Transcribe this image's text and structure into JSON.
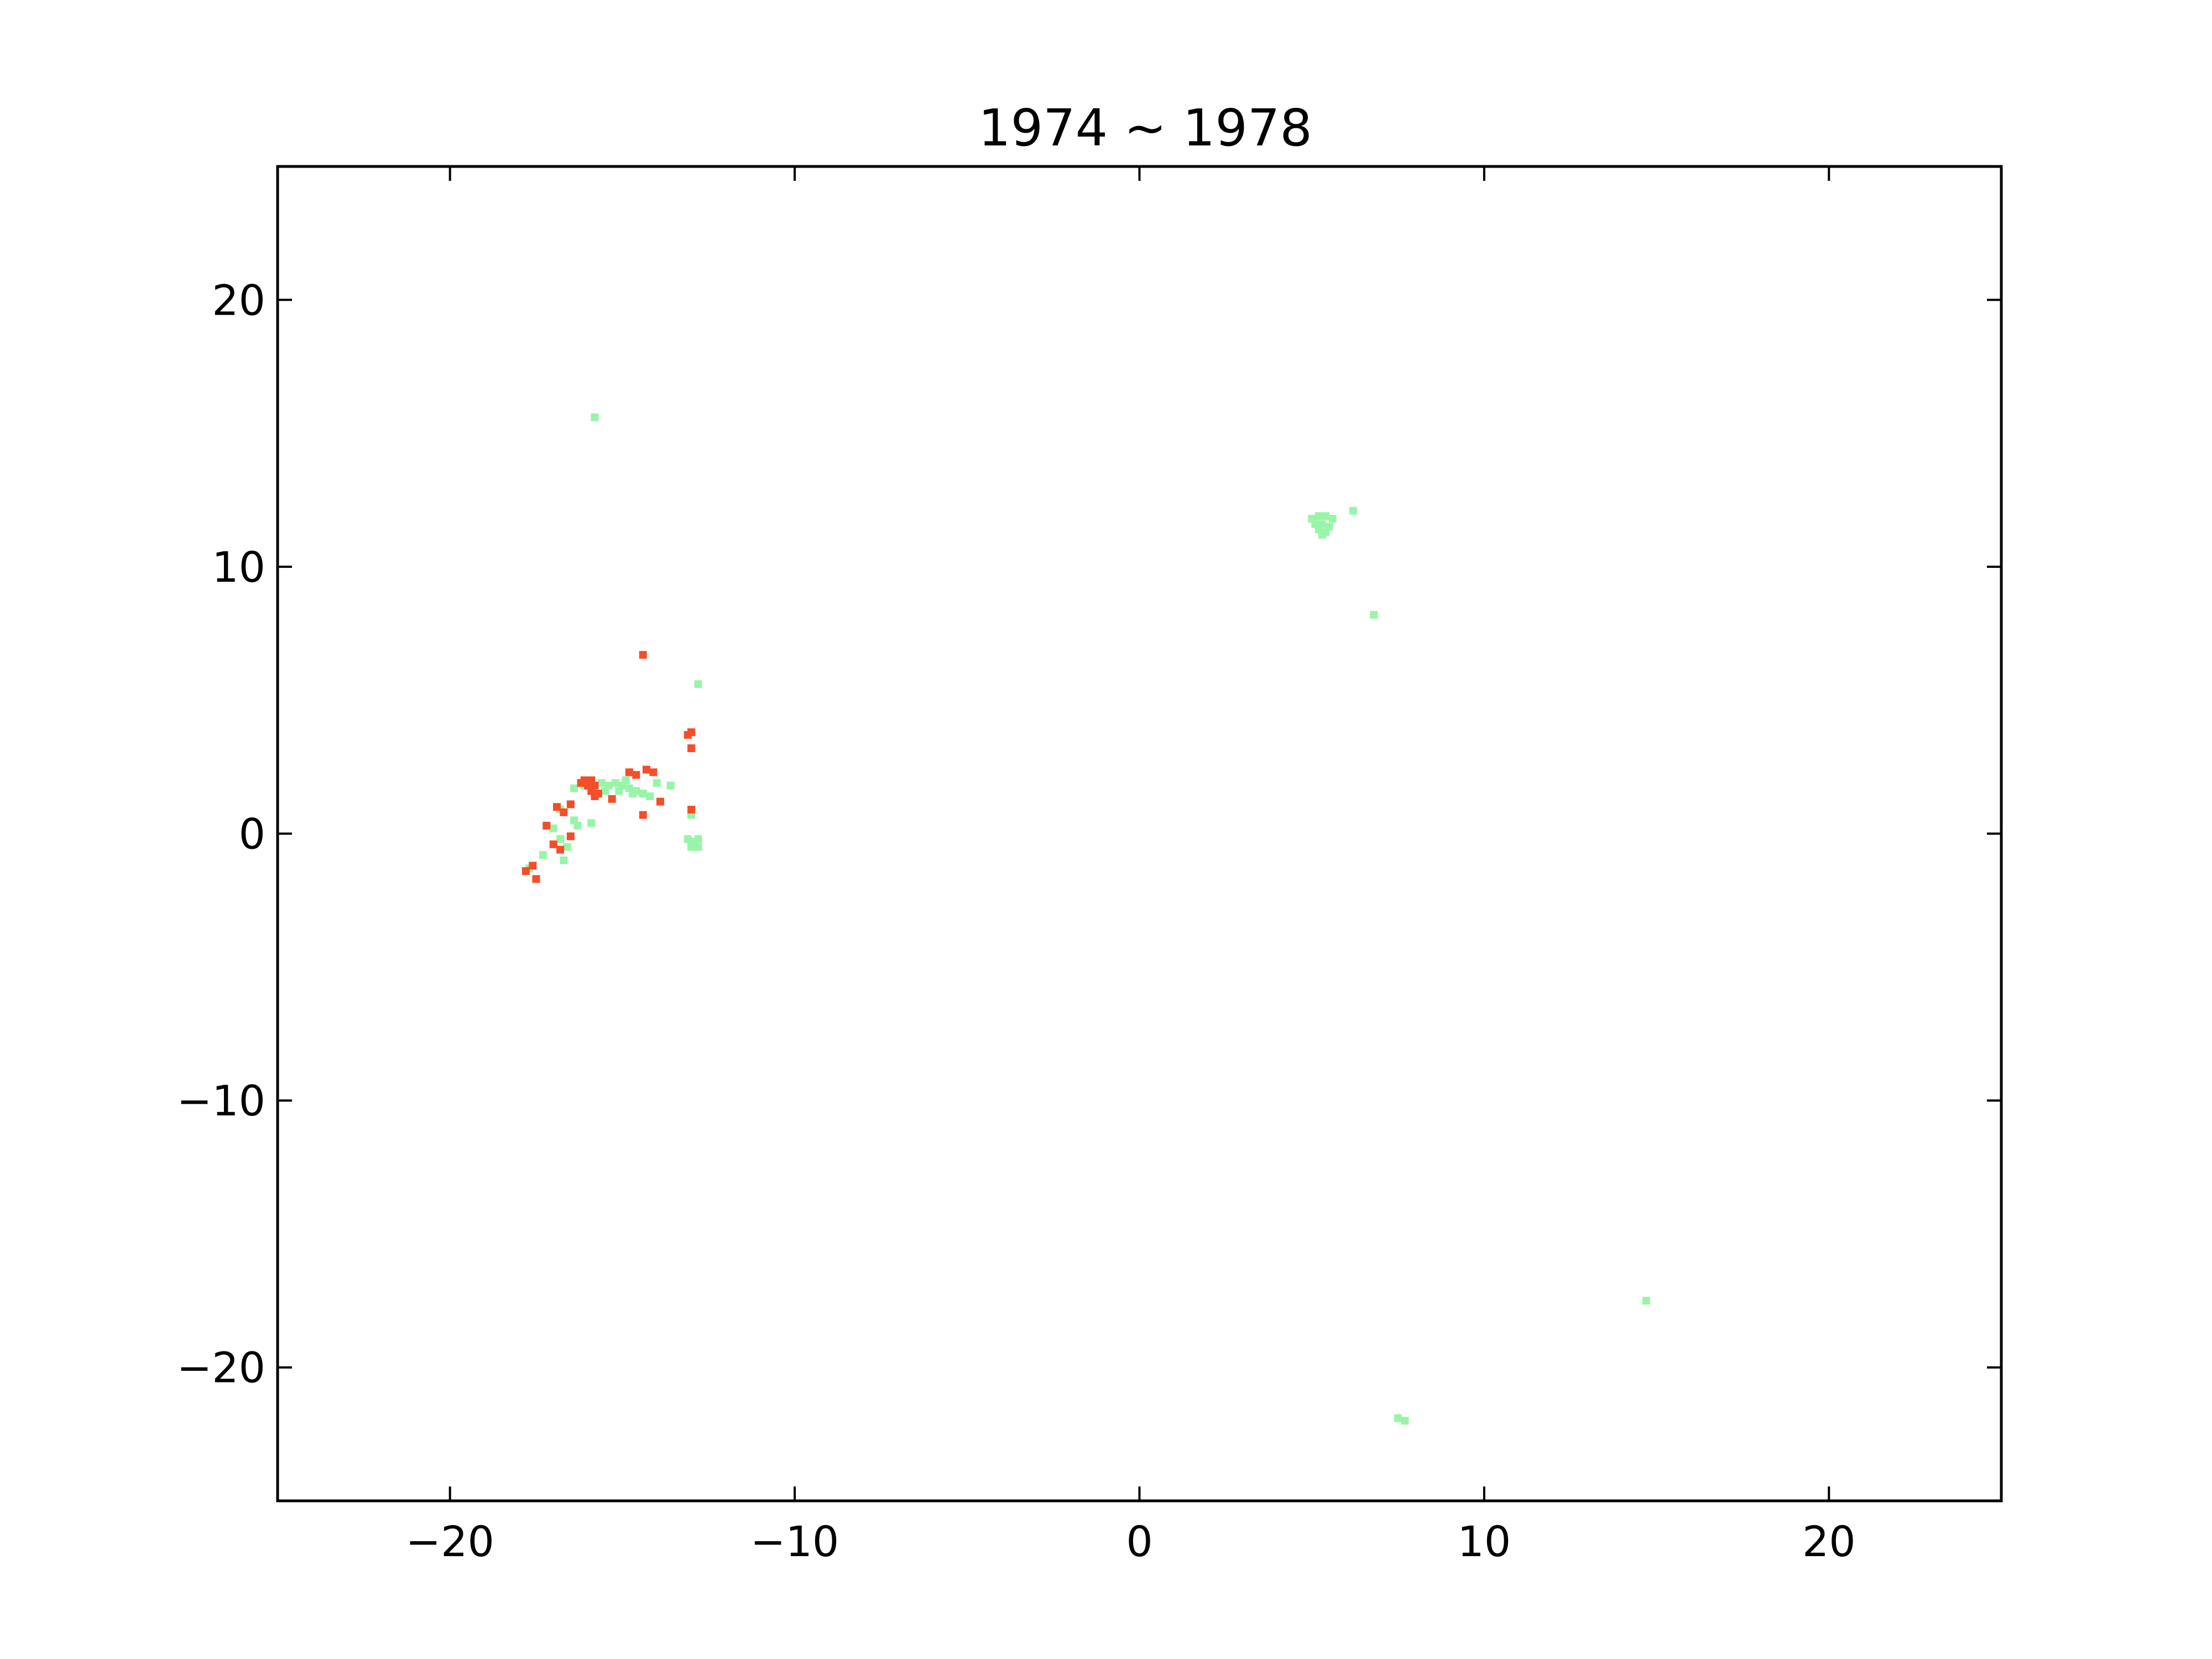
{
  "chart_data": {
    "type": "scatter",
    "title": "1974 ~ 1978",
    "xlabel": "",
    "ylabel": "",
    "xlim": [
      -25,
      25
    ],
    "ylim": [
      -25,
      25
    ],
    "xticks": [
      -20,
      -10,
      0,
      10,
      20
    ],
    "yticks": [
      -20,
      -10,
      0,
      10,
      20
    ],
    "xtick_labels": [
      "−20",
      "−10",
      "0",
      "10",
      "20"
    ],
    "ytick_labels": [
      "−20",
      "−10",
      "0",
      "10",
      "20"
    ],
    "grid": false,
    "legend": "none",
    "series": [
      {
        "color": "#98f5a8",
        "points": [
          [
            -15.8,
            15.6
          ],
          [
            5.0,
            11.8
          ],
          [
            5.2,
            11.9
          ],
          [
            5.4,
            11.9
          ],
          [
            5.6,
            11.8
          ],
          [
            5.1,
            11.6
          ],
          [
            5.3,
            11.6
          ],
          [
            5.5,
            11.5
          ],
          [
            5.2,
            11.4
          ],
          [
            5.4,
            11.3
          ],
          [
            5.3,
            11.2
          ],
          [
            6.2,
            12.1
          ],
          [
            6.8,
            8.2
          ],
          [
            -12.8,
            5.6
          ],
          [
            -16.4,
            1.7
          ],
          [
            -16.1,
            1.8
          ],
          [
            -15.6,
            1.9
          ],
          [
            -15.4,
            1.8
          ],
          [
            -15.2,
            1.9
          ],
          [
            -15.0,
            1.8
          ],
          [
            -14.8,
            1.7
          ],
          [
            -14.6,
            1.6
          ],
          [
            -14.4,
            1.5
          ],
          [
            -15.5,
            1.6
          ],
          [
            -15.1,
            1.6
          ],
          [
            -14.7,
            1.5
          ],
          [
            -14.2,
            1.4
          ],
          [
            -14.0,
            1.9
          ],
          [
            -13.6,
            1.8
          ],
          [
            -14.9,
            2.0
          ],
          [
            -16.8,
            0.9
          ],
          [
            -16.4,
            0.5
          ],
          [
            -16.3,
            0.3
          ],
          [
            -17.0,
            0.2
          ],
          [
            -16.8,
            -0.2
          ],
          [
            -16.6,
            -0.5
          ],
          [
            -17.3,
            -0.8
          ],
          [
            -16.7,
            -1.0
          ],
          [
            -17.7,
            -1.3
          ],
          [
            -15.9,
            0.4
          ],
          [
            -13.1,
            -0.2
          ],
          [
            -12.9,
            -0.3
          ],
          [
            -13.0,
            -0.4
          ],
          [
            -12.8,
            -0.2
          ],
          [
            -13.0,
            -0.5
          ],
          [
            -12.8,
            -0.5
          ],
          [
            -13.0,
            0.7
          ],
          [
            7.5,
            -21.9
          ],
          [
            7.7,
            -22.0
          ],
          [
            14.7,
            -17.5
          ]
        ]
      },
      {
        "color": "#f44d2a",
        "points": [
          [
            -14.4,
            6.7
          ],
          [
            -13.0,
            3.8
          ],
          [
            -13.1,
            3.7
          ],
          [
            -13.0,
            3.2
          ],
          [
            -16.1,
            2.0
          ],
          [
            -15.9,
            2.0
          ],
          [
            -16.0,
            1.8
          ],
          [
            -15.8,
            1.8
          ],
          [
            -15.9,
            1.6
          ],
          [
            -15.7,
            1.5
          ],
          [
            -15.8,
            1.4
          ],
          [
            -16.2,
            1.9
          ],
          [
            -14.6,
            2.2
          ],
          [
            -14.3,
            2.4
          ],
          [
            -14.1,
            2.3
          ],
          [
            -14.8,
            2.3
          ],
          [
            -13.9,
            1.2
          ],
          [
            -14.4,
            0.7
          ],
          [
            -15.3,
            1.3
          ],
          [
            -16.9,
            1.0
          ],
          [
            -16.7,
            0.8
          ],
          [
            -16.5,
            1.1
          ],
          [
            -17.2,
            0.3
          ],
          [
            -17.0,
            -0.4
          ],
          [
            -16.5,
            -0.1
          ],
          [
            -16.8,
            -0.6
          ],
          [
            -17.6,
            -1.2
          ],
          [
            -17.8,
            -1.4
          ],
          [
            -17.5,
            -1.7
          ],
          [
            -13.0,
            0.9
          ]
        ]
      }
    ]
  }
}
